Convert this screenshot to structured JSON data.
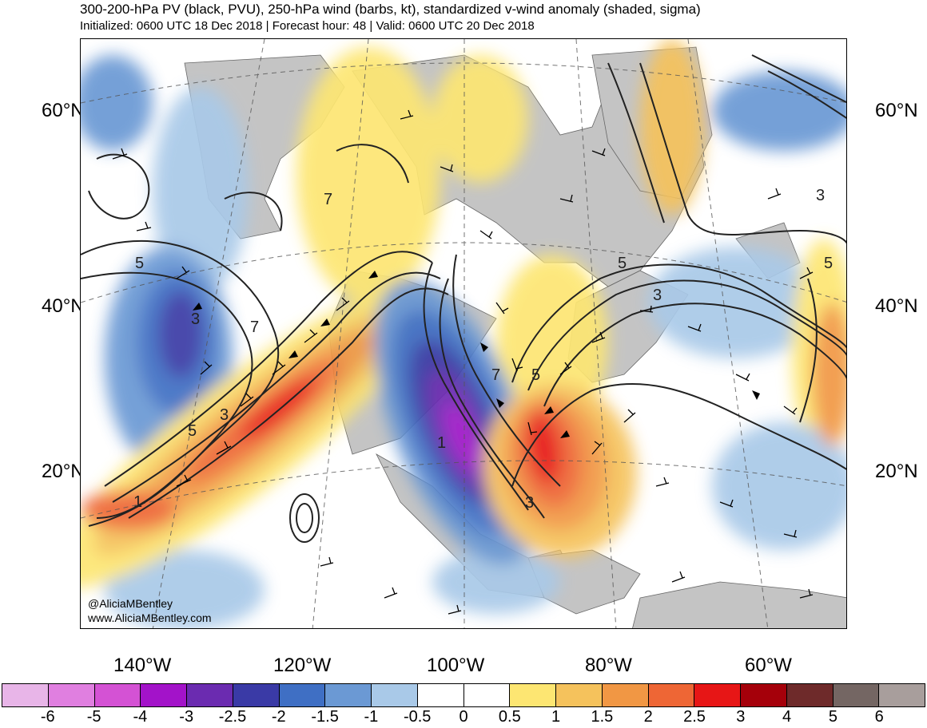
{
  "header": {
    "title": "300-200-hPa PV (black, PVU), 250-hPa wind (barbs, kt), standardized v-wind anomaly (shaded, sigma)",
    "subtitle": "Initialized: 0600 UTC 18 Dec 2018 | Forecast hour: 48 | Valid: 0600 UTC 20 Dec 2018"
  },
  "axes": {
    "lat_labels": [
      "60°N",
      "40°N",
      "20°N"
    ],
    "lon_labels": [
      "140°W",
      "120°W",
      "100°W",
      "80°W",
      "60°W"
    ]
  },
  "credits": {
    "handle": "@AliciaMBentley",
    "site": "www.AliciaMBentley.com"
  },
  "contour_labels": [
    "3",
    "5",
    "7",
    "1",
    "3",
    "5",
    "7",
    "1",
    "3",
    "5",
    "7",
    "3",
    "5",
    "3",
    "5"
  ],
  "colorbar": {
    "colors": [
      "#e8b5e8",
      "#e07fe0",
      "#d452d4",
      "#a313c9",
      "#6b2bb0",
      "#3a3aa6",
      "#3f6fc4",
      "#6b99d4",
      "#a9c9e8",
      "#ffffff",
      "#ffffff",
      "#fde672",
      "#f5c25c",
      "#f19744",
      "#ee6635",
      "#e71616",
      "#a5000a",
      "#6e2a2a",
      "#746663",
      "#a89e9c"
    ],
    "ticks": [
      "-6",
      "-5",
      "-4",
      "-3",
      "-2.5",
      "-2",
      "-1.5",
      "-1",
      "-0.5",
      "0",
      "0.5",
      "1",
      "1.5",
      "2",
      "2.5",
      "3",
      "4",
      "5",
      "6"
    ]
  },
  "colors": {
    "land": "#c4c4c4",
    "contour": "#222222",
    "border": "#000000"
  }
}
